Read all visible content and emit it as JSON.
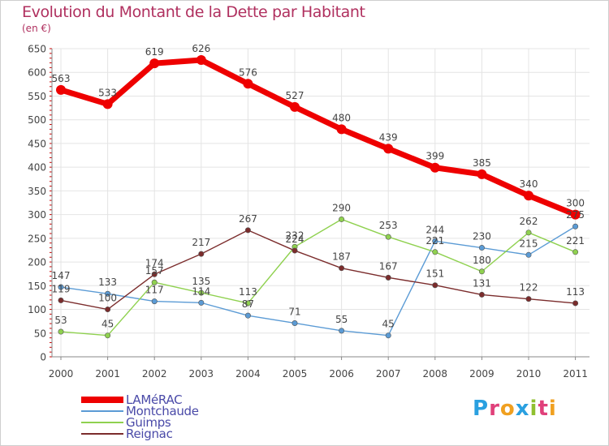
{
  "title": "Evolution du Montant de la Dette par Habitant",
  "subtitle": "(en €)",
  "logo": {
    "text": "Proxiti",
    "letter_colors": [
      "#2aa0e0",
      "#e0407a",
      "#f0a020",
      "#2aa0e0",
      "#90c030",
      "#e0407a",
      "#f0a020"
    ]
  },
  "chart_data": {
    "type": "line",
    "title": "Evolution du Montant de la Dette par Habitant",
    "subtitle": "(en €)",
    "xlabel": "",
    "ylabel": "",
    "ylim": [
      0,
      650
    ],
    "yticks": [
      0,
      50,
      100,
      150,
      200,
      250,
      300,
      350,
      400,
      450,
      500,
      550,
      600,
      650
    ],
    "grid": true,
    "legend_position": "bottom-left",
    "x": [
      "2000",
      "2001",
      "2002",
      "2003",
      "2004",
      "2005",
      "2006",
      "2007",
      "2008",
      "2009",
      "2010",
      "2011"
    ],
    "series": [
      {
        "name": "LAMéRAC",
        "color": "#ee0000",
        "values": [
          563,
          533,
          619,
          626,
          576,
          527,
          480,
          439,
          399,
          385,
          340,
          300
        ]
      },
      {
        "name": "Montchaude",
        "color": "#5b9bd5",
        "values": [
          147,
          133,
          117,
          114,
          87,
          71,
          55,
          45,
          244,
          230,
          215,
          275
        ]
      },
      {
        "name": "Guimps",
        "color": "#8fd14f",
        "values": [
          53,
          45,
          157,
          135,
          113,
          232,
          290,
          253,
          221,
          180,
          262,
          221
        ]
      },
      {
        "name": "Reignac",
        "color": "#7b2c2c",
        "values": [
          119,
          100,
          174,
          217,
          267,
          224,
          187,
          167,
          151,
          131,
          122,
          113
        ]
      }
    ]
  }
}
